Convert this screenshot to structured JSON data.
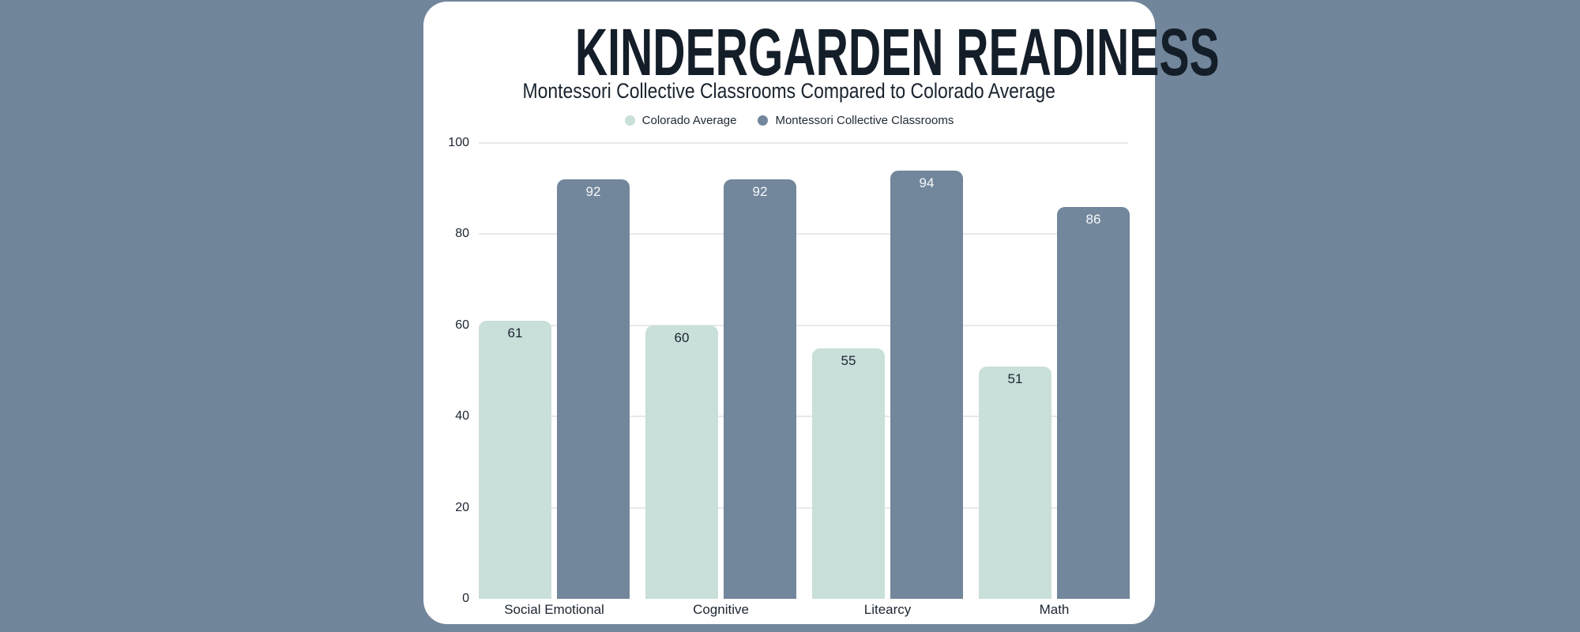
{
  "page": {
    "background_color": "#72869B",
    "card_color": "#FFFFFF"
  },
  "header": {
    "title": "KINDERGARDEN READINESS",
    "subtitle": "Montessori Collective Classrooms Compared to Colorado Average"
  },
  "legend": {
    "items": [
      {
        "label": "Colorado Average",
        "color": "#C9DFDA"
      },
      {
        "label": "Montessori Collective Classrooms",
        "color": "#72879C"
      }
    ]
  },
  "chart_data": {
    "type": "bar",
    "title": "KINDERGARDEN READINESS",
    "subtitle": "Montessori Collective Classrooms Compared to Colorado Average",
    "categories": [
      "Social Emotional",
      "Cognitive",
      "Litearcy",
      "Math"
    ],
    "series": [
      {
        "name": "Colorado Average",
        "color": "#C9DFDA",
        "label_color": "#1B2530",
        "values": [
          61,
          60,
          55,
          51
        ]
      },
      {
        "name": "Montessori Collective Classrooms",
        "color": "#72879C",
        "label_color": "#F7F9FA",
        "values": [
          92,
          92,
          94,
          86
        ]
      }
    ],
    "y_ticks": [
      0,
      20,
      40,
      60,
      80,
      100
    ],
    "ylim": [
      0,
      100
    ],
    "grid": true,
    "legend_position": "top",
    "value_label_position": "inside-top",
    "xlabel": "",
    "ylabel": "",
    "text_color": "#1B2530",
    "gridline_color": "#E9E9E9"
  }
}
